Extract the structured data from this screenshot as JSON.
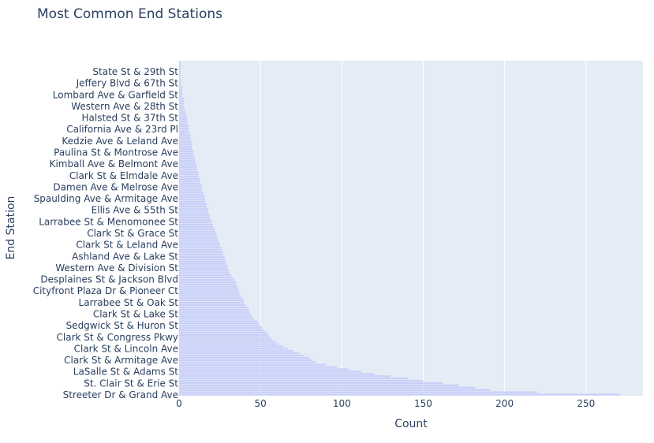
{
  "chart_data": {
    "type": "bar",
    "orientation": "horizontal",
    "title": "Most Common End Stations",
    "xlabel": "Count",
    "ylabel": "End Station",
    "xlim": [
      0,
      285
    ],
    "x_ticks": [
      0,
      50,
      100,
      150,
      200,
      250
    ],
    "grid": true,
    "bar_color": "#c8cff9",
    "plot_bg": "#e5ecf6",
    "text_color": "#2a3f5f",
    "category_count": 146,
    "labeled_categories": [
      "State St & 29th St",
      "Jeffery Blvd & 67th St",
      "Lombard Ave & Garfield St",
      "Western Ave & 28th St",
      "Halsted St & 37th St",
      "California Ave & 23rd Pl",
      "Kedzie Ave & Leland Ave",
      "Paulina St & Montrose Ave",
      "Kimball Ave & Belmont Ave",
      "Clark St & Elmdale Ave",
      "Damen Ave & Melrose Ave",
      "Spaulding Ave & Armitage Ave",
      "Ellis Ave & 55th St",
      "Larrabee St & Menomonee St",
      "Clark St & Grace St",
      "Clark St & Leland Ave",
      "Ashland Ave & Lake St",
      "Western Ave & Division St",
      "Desplaines St & Jackson Blvd",
      "Cityfront Plaza Dr & Pioneer Ct",
      "Larrabee St & Oak St",
      "Clark St & Lake St",
      "Sedgwick St & Huron St",
      "Clark St & Congress Pkwy",
      "Clark St & Lincoln Ave",
      "Clark St & Armitage Ave",
      "LaSalle St & Adams St",
      "St. Clair St & Erie St",
      "Streeter Dr & Grand Ave"
    ],
    "values_top_to_bottom": [
      1,
      1,
      1,
      1,
      1,
      1,
      1,
      1,
      1,
      1,
      1,
      2,
      2,
      2,
      2,
      2,
      3,
      3,
      3,
      3,
      3,
      4,
      4,
      4,
      5,
      5,
      5,
      5,
      6,
      6,
      6,
      6,
      7,
      7,
      7,
      8,
      8,
      8,
      8,
      9,
      9,
      9,
      10,
      10,
      10,
      11,
      11,
      11,
      12,
      12,
      12,
      13,
      13,
      13,
      14,
      14,
      14,
      15,
      15,
      16,
      16,
      16,
      17,
      17,
      18,
      18,
      18,
      19,
      19,
      20,
      20,
      21,
      21,
      22,
      22,
      23,
      23,
      24,
      24,
      25,
      25,
      26,
      26,
      27,
      27,
      28,
      28,
      29,
      29,
      30,
      30,
      31,
      31,
      32,
      33,
      34,
      35,
      35,
      36,
      36,
      37,
      37,
      38,
      39,
      40,
      40,
      41,
      42,
      43,
      43,
      44,
      45,
      46,
      48,
      49,
      50,
      51,
      52,
      54,
      55,
      56,
      57,
      59,
      61,
      64,
      67,
      70,
      74,
      77,
      80,
      82,
      84,
      90,
      97,
      104,
      112,
      120,
      130,
      141,
      150,
      162,
      172,
      182,
      191,
      220,
      271
    ]
  }
}
